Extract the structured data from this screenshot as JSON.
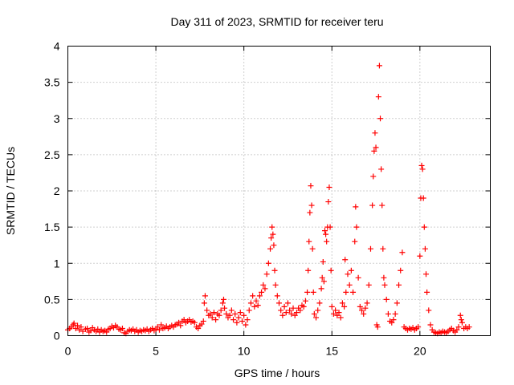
{
  "chart_data": {
    "type": "scatter",
    "title": "Day 311 of 2023, SRMTID for receiver teru",
    "xlabel": "GPS time / hours",
    "ylabel": "SRMTID / TECUs",
    "xlim": [
      0,
      24
    ],
    "ylim": [
      0,
      4
    ],
    "xticks": [
      0,
      5,
      10,
      15,
      20
    ],
    "xtick_labels": [
      "0",
      "5",
      "10",
      "15",
      "20"
    ],
    "yticks": [
      0,
      0.5,
      1,
      1.5,
      2,
      2.5,
      3,
      3.5,
      4
    ],
    "ytick_labels": [
      "0",
      "0.5",
      "1",
      "1.5",
      "2",
      "2.5",
      "3",
      "3.5",
      "4"
    ],
    "grid": true,
    "marker": "+",
    "marker_color": "#ff0000",
    "series": [
      {
        "name": "teru",
        "points": [
          [
            0.0,
            0.08
          ],
          [
            0.1,
            0.1
          ],
          [
            0.2,
            0.12
          ],
          [
            0.3,
            0.15
          ],
          [
            0.35,
            0.17
          ],
          [
            0.45,
            0.1
          ],
          [
            0.55,
            0.14
          ],
          [
            0.65,
            0.08
          ],
          [
            0.75,
            0.12
          ],
          [
            0.85,
            0.06
          ],
          [
            1.0,
            0.09
          ],
          [
            1.1,
            0.1
          ],
          [
            1.2,
            0.05
          ],
          [
            1.3,
            0.07
          ],
          [
            1.4,
            0.11
          ],
          [
            1.5,
            0.08
          ],
          [
            1.6,
            0.06
          ],
          [
            1.7,
            0.09
          ],
          [
            1.8,
            0.05
          ],
          [
            1.9,
            0.08
          ],
          [
            2.0,
            0.06
          ],
          [
            2.1,
            0.07
          ],
          [
            2.2,
            0.05
          ],
          [
            2.3,
            0.09
          ],
          [
            2.4,
            0.1
          ],
          [
            2.5,
            0.13
          ],
          [
            2.6,
            0.11
          ],
          [
            2.7,
            0.14
          ],
          [
            2.8,
            0.12
          ],
          [
            2.9,
            0.09
          ],
          [
            3.0,
            0.08
          ],
          [
            3.1,
            0.1
          ],
          [
            3.2,
            0.04
          ],
          [
            3.3,
            0.03
          ],
          [
            3.4,
            0.06
          ],
          [
            3.5,
            0.08
          ],
          [
            3.6,
            0.07
          ],
          [
            3.7,
            0.09
          ],
          [
            3.8,
            0.06
          ],
          [
            3.9,
            0.08
          ],
          [
            4.0,
            0.05
          ],
          [
            4.1,
            0.07
          ],
          [
            4.2,
            0.06
          ],
          [
            4.3,
            0.08
          ],
          [
            4.4,
            0.07
          ],
          [
            4.5,
            0.09
          ],
          [
            4.6,
            0.06
          ],
          [
            4.7,
            0.08
          ],
          [
            4.8,
            0.1
          ],
          [
            4.9,
            0.07
          ],
          [
            5.0,
            0.09
          ],
          [
            5.1,
            0.12
          ],
          [
            5.2,
            0.08
          ],
          [
            5.3,
            0.15
          ],
          [
            5.4,
            0.1
          ],
          [
            5.5,
            0.11
          ],
          [
            5.6,
            0.13
          ],
          [
            5.7,
            0.1
          ],
          [
            5.8,
            0.12
          ],
          [
            5.9,
            0.14
          ],
          [
            6.0,
            0.12
          ],
          [
            6.1,
            0.15
          ],
          [
            6.2,
            0.16
          ],
          [
            6.3,
            0.18
          ],
          [
            6.4,
            0.14
          ],
          [
            6.5,
            0.2
          ],
          [
            6.6,
            0.22
          ],
          [
            6.7,
            0.18
          ],
          [
            6.8,
            0.2
          ],
          [
            6.9,
            0.22
          ],
          [
            7.0,
            0.19
          ],
          [
            7.1,
            0.2
          ],
          [
            7.2,
            0.18
          ],
          [
            7.3,
            0.12
          ],
          [
            7.4,
            0.1
          ],
          [
            7.5,
            0.14
          ],
          [
            7.6,
            0.16
          ],
          [
            7.7,
            0.2
          ],
          [
            7.75,
            0.45
          ],
          [
            7.8,
            0.55
          ],
          [
            7.9,
            0.35
          ],
          [
            8.0,
            0.28
          ],
          [
            8.1,
            0.3
          ],
          [
            8.2,
            0.25
          ],
          [
            8.3,
            0.32
          ],
          [
            8.4,
            0.22
          ],
          [
            8.5,
            0.3
          ],
          [
            8.6,
            0.28
          ],
          [
            8.7,
            0.35
          ],
          [
            8.8,
            0.45
          ],
          [
            8.85,
            0.5
          ],
          [
            8.9,
            0.38
          ],
          [
            9.0,
            0.3
          ],
          [
            9.1,
            0.25
          ],
          [
            9.2,
            0.28
          ],
          [
            9.3,
            0.35
          ],
          [
            9.4,
            0.22
          ],
          [
            9.5,
            0.3
          ],
          [
            9.6,
            0.18
          ],
          [
            9.7,
            0.25
          ],
          [
            9.8,
            0.32
          ],
          [
            9.9,
            0.2
          ],
          [
            10.0,
            0.28
          ],
          [
            10.1,
            0.15
          ],
          [
            10.2,
            0.22
          ],
          [
            10.3,
            0.35
          ],
          [
            10.4,
            0.45
          ],
          [
            10.5,
            0.55
          ],
          [
            10.6,
            0.4
          ],
          [
            10.7,
            0.48
          ],
          [
            10.8,
            0.42
          ],
          [
            10.9,
            0.55
          ],
          [
            11.0,
            0.6
          ],
          [
            11.1,
            0.7
          ],
          [
            11.2,
            0.65
          ],
          [
            11.3,
            0.85
          ],
          [
            11.4,
            1.0
          ],
          [
            11.5,
            1.2
          ],
          [
            11.55,
            1.35
          ],
          [
            11.6,
            1.5
          ],
          [
            11.65,
            1.4
          ],
          [
            11.7,
            1.25
          ],
          [
            11.75,
            0.9
          ],
          [
            11.8,
            0.7
          ],
          [
            11.9,
            0.55
          ],
          [
            12.0,
            0.45
          ],
          [
            12.1,
            0.35
          ],
          [
            12.2,
            0.28
          ],
          [
            12.3,
            0.4
          ],
          [
            12.4,
            0.32
          ],
          [
            12.5,
            0.45
          ],
          [
            12.6,
            0.35
          ],
          [
            12.7,
            0.3
          ],
          [
            12.8,
            0.38
          ],
          [
            12.9,
            0.28
          ],
          [
            13.0,
            0.32
          ],
          [
            13.1,
            0.38
          ],
          [
            13.2,
            0.35
          ],
          [
            13.3,
            0.42
          ],
          [
            13.4,
            0.4
          ],
          [
            13.5,
            0.48
          ],
          [
            13.6,
            0.6
          ],
          [
            13.65,
            0.9
          ],
          [
            13.7,
            1.3
          ],
          [
            13.75,
            1.7
          ],
          [
            13.8,
            2.07
          ],
          [
            13.85,
            1.8
          ],
          [
            13.9,
            1.2
          ],
          [
            13.95,
            0.6
          ],
          [
            14.0,
            0.3
          ],
          [
            14.1,
            0.25
          ],
          [
            14.2,
            0.35
          ],
          [
            14.3,
            0.45
          ],
          [
            14.4,
            0.65
          ],
          [
            14.45,
            0.8
          ],
          [
            14.5,
            1.02
          ],
          [
            14.55,
            0.75
          ],
          [
            14.6,
            1.45
          ],
          [
            14.65,
            1.4
          ],
          [
            14.7,
            1.3
          ],
          [
            14.75,
            1.5
          ],
          [
            14.8,
            1.85
          ],
          [
            14.85,
            2.05
          ],
          [
            14.9,
            1.5
          ],
          [
            14.95,
            0.9
          ],
          [
            15.0,
            0.4
          ],
          [
            15.1,
            0.3
          ],
          [
            15.2,
            0.35
          ],
          [
            15.3,
            0.28
          ],
          [
            15.4,
            0.32
          ],
          [
            15.5,
            0.25
          ],
          [
            15.6,
            0.45
          ],
          [
            15.7,
            0.4
          ],
          [
            15.75,
            1.05
          ],
          [
            15.8,
            0.6
          ],
          [
            15.9,
            0.85
          ],
          [
            16.0,
            0.7
          ],
          [
            16.1,
            0.9
          ],
          [
            16.2,
            0.6
          ],
          [
            16.3,
            1.3
          ],
          [
            16.35,
            1.78
          ],
          [
            16.4,
            1.5
          ],
          [
            16.5,
            0.8
          ],
          [
            16.6,
            0.4
          ],
          [
            16.7,
            0.35
          ],
          [
            16.8,
            0.3
          ],
          [
            16.9,
            0.38
          ],
          [
            17.0,
            0.45
          ],
          [
            17.1,
            0.7
          ],
          [
            17.2,
            1.2
          ],
          [
            17.3,
            1.8
          ],
          [
            17.35,
            2.2
          ],
          [
            17.4,
            2.55
          ],
          [
            17.45,
            2.8
          ],
          [
            17.5,
            2.6
          ],
          [
            17.55,
            0.15
          ],
          [
            17.6,
            0.12
          ],
          [
            17.65,
            3.3
          ],
          [
            17.7,
            3.73
          ],
          [
            17.75,
            3.0
          ],
          [
            17.8,
            2.3
          ],
          [
            17.85,
            1.8
          ],
          [
            17.9,
            1.2
          ],
          [
            17.95,
            0.8
          ],
          [
            18.0,
            0.7
          ],
          [
            18.1,
            0.5
          ],
          [
            18.2,
            0.3
          ],
          [
            18.3,
            0.2
          ],
          [
            18.4,
            0.18
          ],
          [
            18.5,
            0.22
          ],
          [
            18.6,
            0.3
          ],
          [
            18.7,
            0.45
          ],
          [
            18.8,
            0.7
          ],
          [
            18.9,
            0.9
          ],
          [
            19.0,
            1.15
          ],
          [
            19.1,
            0.12
          ],
          [
            19.2,
            0.1
          ],
          [
            19.3,
            0.08
          ],
          [
            19.4,
            0.1
          ],
          [
            19.5,
            0.09
          ],
          [
            19.6,
            0.11
          ],
          [
            19.7,
            0.08
          ],
          [
            19.8,
            0.1
          ],
          [
            19.9,
            0.12
          ],
          [
            20.0,
            1.1
          ],
          [
            20.05,
            1.9
          ],
          [
            20.1,
            2.35
          ],
          [
            20.15,
            2.3
          ],
          [
            20.2,
            1.9
          ],
          [
            20.25,
            1.5
          ],
          [
            20.3,
            1.2
          ],
          [
            20.35,
            0.85
          ],
          [
            20.4,
            0.6
          ],
          [
            20.5,
            0.35
          ],
          [
            20.6,
            0.15
          ],
          [
            20.7,
            0.08
          ],
          [
            20.8,
            0.05
          ],
          [
            20.9,
            0.04
          ],
          [
            21.0,
            0.03
          ],
          [
            21.1,
            0.05
          ],
          [
            21.2,
            0.04
          ],
          [
            21.3,
            0.06
          ],
          [
            21.4,
            0.05
          ],
          [
            21.5,
            0.04
          ],
          [
            21.6,
            0.06
          ],
          [
            21.7,
            0.08
          ],
          [
            21.8,
            0.1
          ],
          [
            21.9,
            0.07
          ],
          [
            22.0,
            0.05
          ],
          [
            22.1,
            0.08
          ],
          [
            22.2,
            0.12
          ],
          [
            22.3,
            0.28
          ],
          [
            22.35,
            0.22
          ],
          [
            22.4,
            0.18
          ],
          [
            22.5,
            0.1
          ],
          [
            22.6,
            0.12
          ],
          [
            22.7,
            0.1
          ],
          [
            22.8,
            0.12
          ]
        ]
      }
    ]
  }
}
